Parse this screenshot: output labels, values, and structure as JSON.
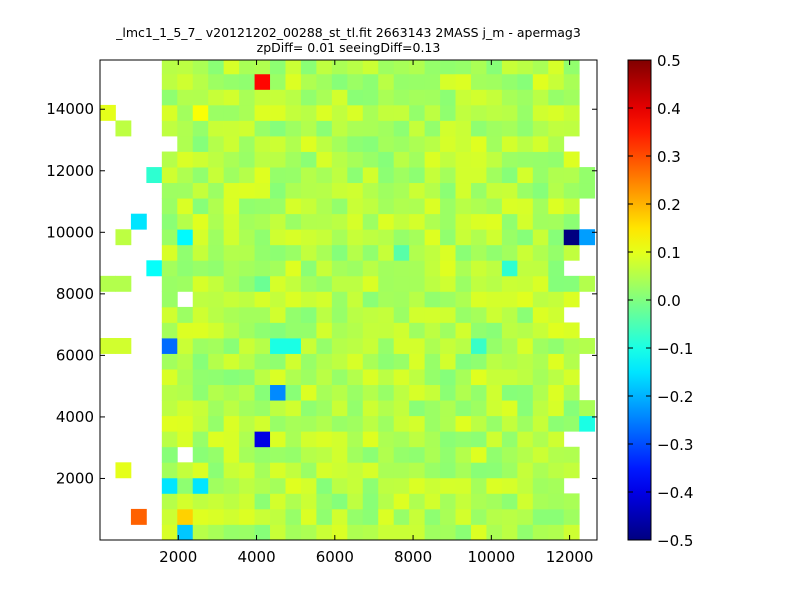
{
  "chart_data": {
    "type": "heatmap",
    "title_line1": "_lmc1_1_5_7_ v20121202_00288_st_tl.fit 2663143 2MASS j_m - apermag3",
    "title_line2": "zpDiff= 0.01 seeingDiff=0.13",
    "xlabel": "",
    "ylabel": "",
    "xlim": [
      0,
      12700
    ],
    "ylim": [
      0,
      15600
    ],
    "xticks": [
      2000,
      4000,
      6000,
      8000,
      10000,
      12000
    ],
    "yticks": [
      2000,
      4000,
      6000,
      8000,
      10000,
      12000,
      14000
    ],
    "colorbar": {
      "cmap": "jet",
      "range": [
        -0.5,
        0.5
      ],
      "ticks": [
        0.5,
        0.4,
        0.3,
        0.2,
        0.1,
        0.0,
        -0.1,
        -0.2,
        -0.3,
        -0.4,
        -0.5
      ],
      "tick_labels": [
        "0.5",
        "0.4",
        "0.3",
        "0.2",
        "0.1",
        "0.0",
        "−0.1",
        "−0.2",
        "−0.3",
        "−0.4",
        "−0.5"
      ]
    },
    "grid": {
      "x0": 0,
      "dx": 395,
      "nx": 32,
      "y0": 0,
      "dy": 505,
      "ny": 31,
      "background_value": 0.05,
      "empty_columns": [
        0,
        1,
        2,
        3,
        31
      ],
      "valid_x_range": [
        790,
        12245
      ]
    },
    "cells": [
      {
        "x": 4150,
        "y": 14900,
        "value": 0.37
      },
      {
        "x": 1000,
        "y": 600,
        "value": 0.28
      },
      {
        "x": 2580,
        "y": 14000,
        "value": 0.12
      },
      {
        "x": 2200,
        "y": 950,
        "value": 0.17
      },
      {
        "x": 2200,
        "y": 300,
        "value": -0.18
      },
      {
        "x": 1000,
        "y": 10100,
        "value": -0.15
      },
      {
        "x": 2200,
        "y": 9900,
        "value": -0.13
      },
      {
        "x": 1400,
        "y": 8700,
        "value": -0.12
      },
      {
        "x": 1400,
        "y": 11900,
        "value": -0.08
      },
      {
        "x": 12050,
        "y": 9600,
        "value": -0.5
      },
      {
        "x": 12480,
        "y": 10000,
        "value": -0.22
      },
      {
        "x": 1800,
        "y": 6100,
        "value": -0.27
      },
      {
        "x": 4580,
        "y": 6100,
        "value": -0.1
      },
      {
        "x": 4950,
        "y": 6100,
        "value": -0.1
      },
      {
        "x": 9750,
        "y": 6100,
        "value": -0.07
      },
      {
        "x": 4580,
        "y": 4600,
        "value": -0.24
      },
      {
        "x": 4150,
        "y": 3200,
        "value": -0.4
      },
      {
        "x": 1800,
        "y": 1700,
        "value": -0.15
      },
      {
        "x": 2580,
        "y": 1700,
        "value": -0.15
      },
      {
        "x": 10550,
        "y": 8750,
        "value": -0.08
      },
      {
        "x": 7750,
        "y": 9150,
        "value": -0.04
      },
      {
        "x": 4150,
        "y": 8200,
        "value": -0.02
      },
      {
        "x": 12480,
        "y": 3700,
        "value": -0.1
      },
      {
        "x": 1800,
        "y": 13000,
        "value": null
      },
      {
        "x": 2200,
        "y": 7700,
        "value": null
      },
      {
        "x": 2200,
        "y": 2700,
        "value": null
      },
      {
        "x": 12050,
        "y": 12900,
        "value": null
      },
      {
        "x": 12050,
        "y": 9000,
        "value": null
      },
      {
        "x": 12050,
        "y": 7500,
        "value": null
      },
      {
        "x": 12050,
        "y": 3200,
        "value": null
      },
      {
        "x": 12050,
        "y": 1800,
        "value": null
      },
      {
        "x": 1000,
        "y": 9100,
        "value": null
      },
      {
        "x": 200,
        "y": 13900,
        "value": 0.1
      },
      {
        "x": 600,
        "y": 13400,
        "value": 0.06
      },
      {
        "x": 12480,
        "y": 11400,
        "value": 0.02
      },
      {
        "x": 12480,
        "y": 11900,
        "value": 0.02
      },
      {
        "x": 600,
        "y": 9600,
        "value": 0.06
      },
      {
        "x": 200,
        "y": 8200,
        "value": 0.05
      },
      {
        "x": 600,
        "y": 8200,
        "value": 0.05
      },
      {
        "x": 12480,
        "y": 8200,
        "value": 0.05
      },
      {
        "x": 200,
        "y": 6100,
        "value": 0.08
      },
      {
        "x": 600,
        "y": 6100,
        "value": 0.08
      },
      {
        "x": 12480,
        "y": 6100,
        "value": 0.05
      },
      {
        "x": 12480,
        "y": 4100,
        "value": 0.04
      },
      {
        "x": 600,
        "y": 2200,
        "value": 0.1
      }
    ]
  }
}
